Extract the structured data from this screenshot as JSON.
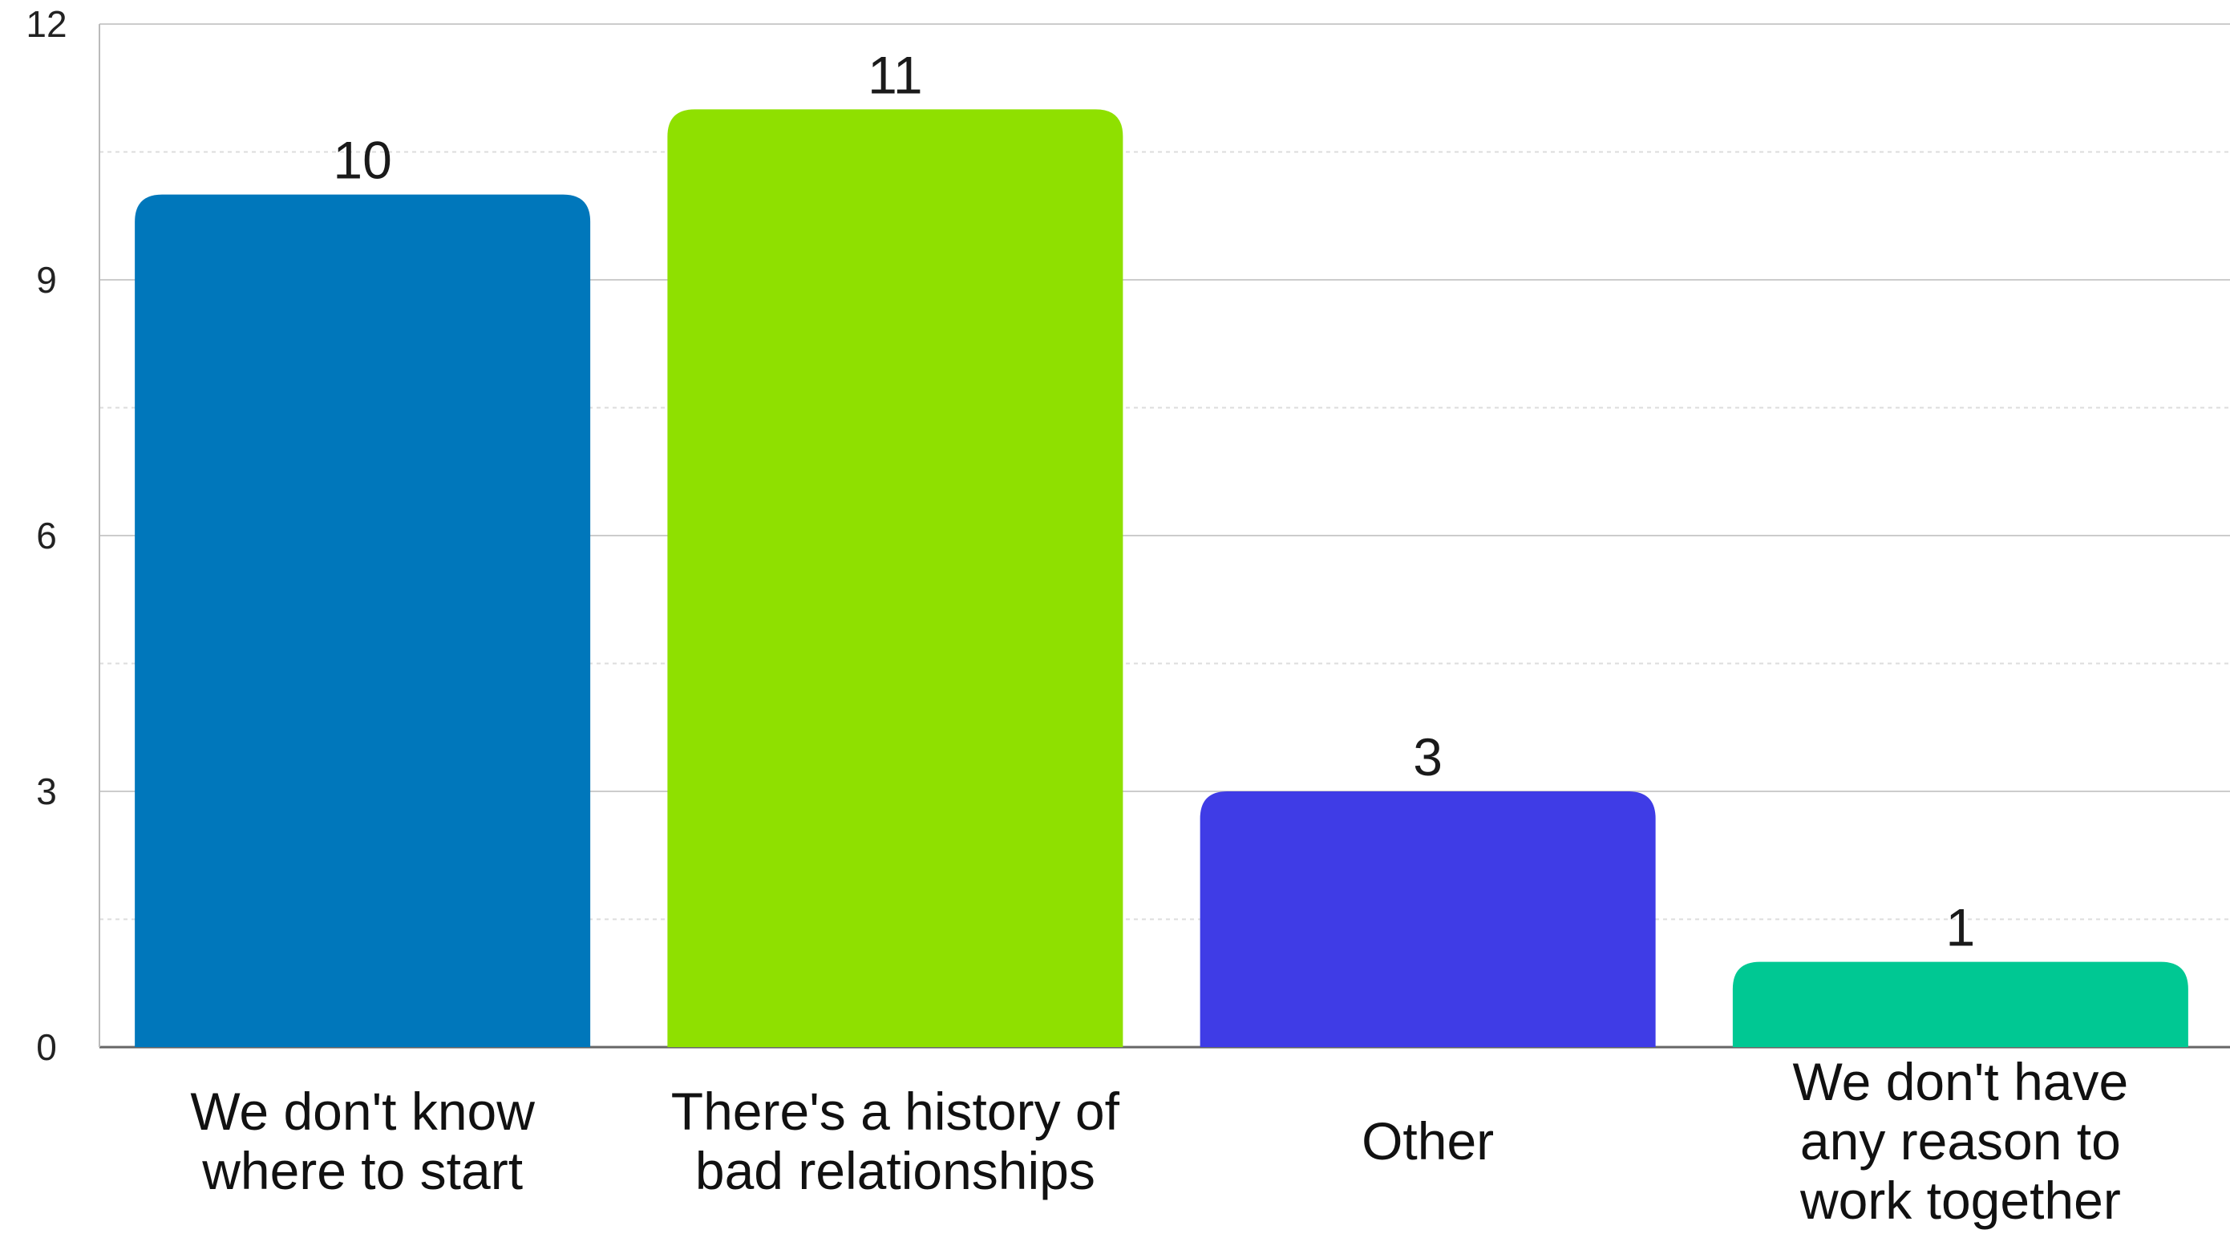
{
  "chart_data": {
    "type": "bar",
    "categories": [
      [
        "We don't know",
        "where to start"
      ],
      [
        "There's a history of",
        "bad relationships"
      ],
      [
        "Other"
      ],
      [
        "We don't have",
        "any reason to",
        "work together"
      ]
    ],
    "values": [
      10,
      11,
      3,
      1
    ],
    "colors": [
      "#0077bb",
      "#8fe000",
      "#3f3ce6",
      "#00c893"
    ],
    "ylim": [
      0,
      12
    ],
    "yticks": [
      0,
      3,
      6,
      9,
      12
    ],
    "minor_gridlines": true,
    "title": "",
    "xlabel": "",
    "ylabel": ""
  }
}
